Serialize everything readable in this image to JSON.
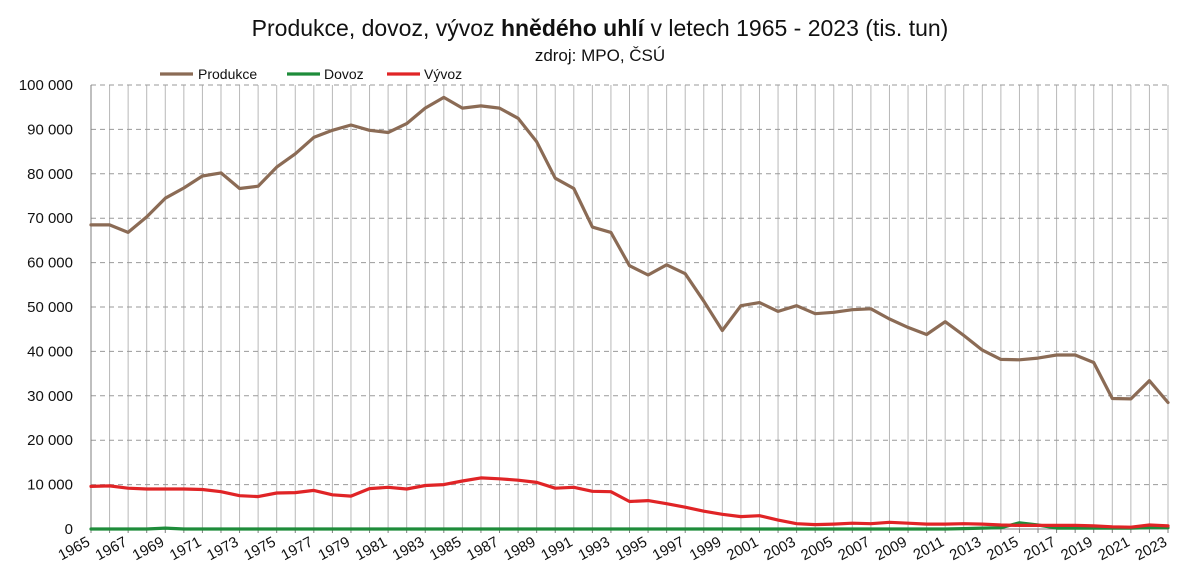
{
  "chart_data": {
    "type": "line",
    "title": {
      "prefix": "Produkce, dovoz, vývoz ",
      "bold": "hnědého uhlí",
      "suffix": " v letech 1965 - 2023 (tis. tun)"
    },
    "subtitle": "zdroj: MPO, ČSÚ",
    "legend_position": "top-left",
    "grid": true,
    "ylim": [
      0,
      100000
    ],
    "y_ticks": [
      0,
      10000,
      20000,
      30000,
      40000,
      50000,
      60000,
      70000,
      80000,
      90000,
      100000
    ],
    "y_tick_labels": [
      "0",
      "10 000",
      "20 000",
      "30 000",
      "40 000",
      "50 000",
      "60 000",
      "70 000",
      "80 000",
      "90 000",
      "100 000"
    ],
    "x": [
      1965,
      1966,
      1967,
      1968,
      1969,
      1970,
      1971,
      1972,
      1973,
      1974,
      1975,
      1976,
      1977,
      1978,
      1979,
      1980,
      1981,
      1982,
      1983,
      1984,
      1985,
      1986,
      1987,
      1988,
      1989,
      1990,
      1991,
      1992,
      1993,
      1994,
      1995,
      1996,
      1997,
      1998,
      1999,
      2000,
      2001,
      2002,
      2003,
      2004,
      2005,
      2006,
      2007,
      2008,
      2009,
      2010,
      2011,
      2012,
      2013,
      2014,
      2015,
      2016,
      2017,
      2018,
      2019,
      2020,
      2021,
      2022,
      2023
    ],
    "x_tick_labels": [
      "1965",
      "1967",
      "1969",
      "1971",
      "1973",
      "1975",
      "1977",
      "1979",
      "1981",
      "1983",
      "1985",
      "1987",
      "1989",
      "1991",
      "1993",
      "1995",
      "1997",
      "1999",
      "2001",
      "2003",
      "2005",
      "2007",
      "2009",
      "2011",
      "2013",
      "2015",
      "2017",
      "2019",
      "2021",
      "2023"
    ],
    "series": [
      {
        "name": "Produkce",
        "color": "#8B6B55",
        "values": [
          68500,
          68500,
          66800,
          70300,
          74500,
          76800,
          79500,
          80200,
          76700,
          77200,
          81500,
          84500,
          88200,
          89800,
          91000,
          89800,
          89300,
          91300,
          94800,
          97200,
          94800,
          95300,
          94800,
          92500,
          87200,
          79000,
          76700,
          68000,
          66800,
          59300,
          57200,
          59500,
          57500,
          51300,
          44700,
          50300,
          51000,
          49000,
          50300,
          48500,
          48800,
          49400,
          49600,
          47300,
          45400,
          43800,
          46700,
          43600,
          40300,
          38200,
          38100,
          38500,
          39200,
          39200,
          37500,
          29400,
          29300,
          33400,
          28500
        ]
      },
      {
        "name": "Dovoz",
        "color": "#1E8C3A",
        "values": [
          0,
          0,
          0,
          0,
          200,
          0,
          0,
          0,
          0,
          0,
          0,
          0,
          0,
          0,
          0,
          0,
          0,
          0,
          0,
          0,
          0,
          0,
          0,
          0,
          0,
          0,
          0,
          0,
          0,
          0,
          0,
          0,
          0,
          0,
          0,
          0,
          0,
          0,
          0,
          0,
          0,
          0,
          0,
          0,
          0,
          0,
          0,
          100,
          200,
          300,
          1400,
          900,
          200,
          200,
          200,
          200,
          200,
          300,
          300
        ]
      },
      {
        "name": "Vývoz",
        "color": "#E02426",
        "values": [
          9600,
          9700,
          9200,
          9000,
          9000,
          9000,
          8900,
          8400,
          7500,
          7300,
          8100,
          8200,
          8700,
          7700,
          7400,
          9100,
          9400,
          9000,
          9800,
          10000,
          10800,
          11500,
          11300,
          11000,
          10500,
          9200,
          9400,
          8500,
          8400,
          6200,
          6400,
          5700,
          4900,
          4000,
          3300,
          2800,
          3000,
          2000,
          1200,
          1000,
          1100,
          1300,
          1200,
          1500,
          1300,
          1100,
          1100,
          1200,
          1100,
          900,
          800,
          800,
          800,
          800,
          700,
          500,
          400,
          900,
          700
        ]
      }
    ]
  }
}
